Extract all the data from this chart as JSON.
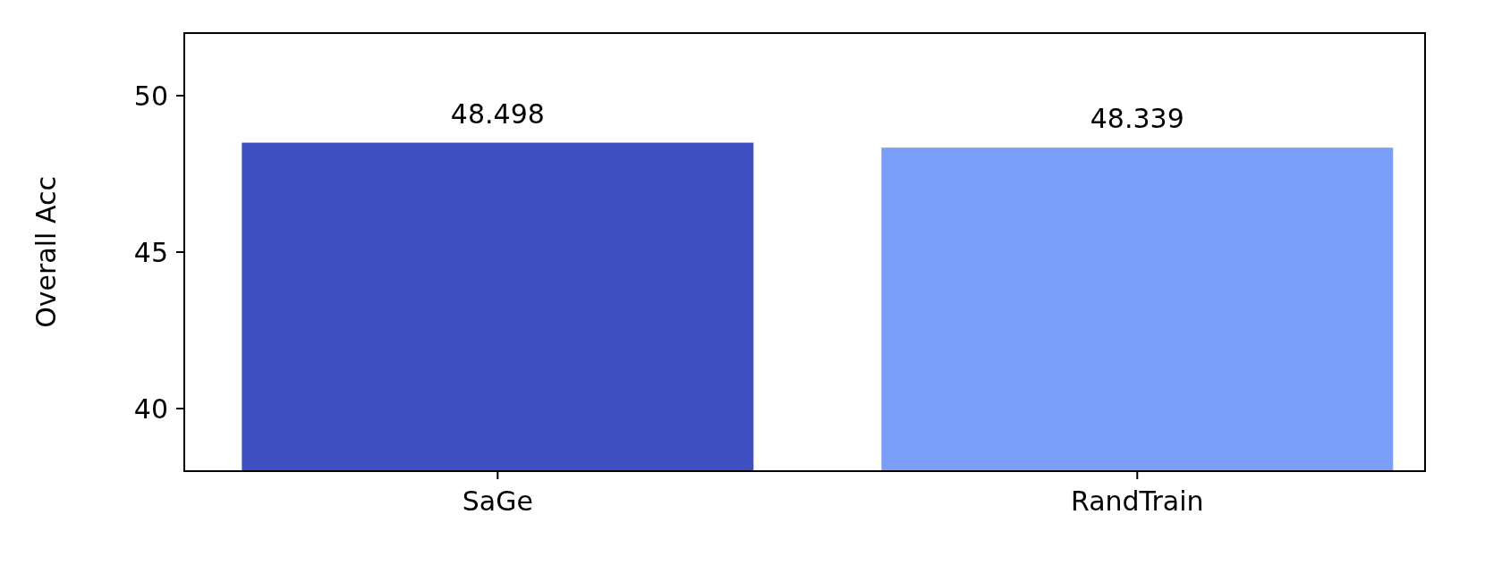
{
  "chart_data": {
    "type": "bar",
    "ylabel": "Overall Acc",
    "categories": [
      "SaGe",
      "RandTrain"
    ],
    "series": [
      {
        "colors": [
          "#3d4fc1",
          "#7b9ff9"
        ],
        "values": [
          48.498,
          48.339
        ]
      }
    ],
    "ylim": [
      38,
      52
    ],
    "yticks": [
      40,
      45,
      50
    ],
    "data_labels": true
  }
}
